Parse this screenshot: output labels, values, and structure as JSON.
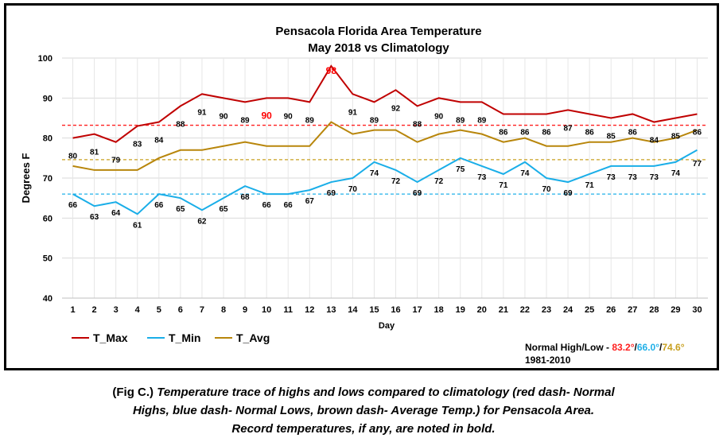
{
  "chart_data": {
    "type": "line",
    "title": "Pensacola Florida Area Temperature",
    "subtitle": "May 2018 vs Climatology",
    "xlabel": "Day",
    "ylabel": "Degrees F",
    "ylim": [
      40,
      100
    ],
    "yticks": [
      40,
      50,
      60,
      70,
      80,
      90,
      100
    ],
    "grid": "on",
    "legend_placement": "bottom-left",
    "x": [
      1,
      2,
      3,
      4,
      5,
      6,
      7,
      8,
      9,
      10,
      11,
      12,
      13,
      14,
      15,
      16,
      17,
      18,
      19,
      20,
      21,
      22,
      23,
      24,
      25,
      26,
      27,
      28,
      29,
      30
    ],
    "series": [
      {
        "name": "T_Max",
        "color": "#c00000",
        "values": [
          80,
          81,
          79,
          83,
          84,
          88,
          91,
          90,
          89,
          90,
          90,
          89,
          98,
          91,
          89,
          92,
          88,
          90,
          89,
          89,
          86,
          86,
          86,
          87,
          86,
          85,
          86,
          84,
          85,
          86
        ],
        "record_days": [
          10,
          13
        ]
      },
      {
        "name": "T_Min",
        "color": "#1aaee8",
        "values": [
          66,
          63,
          64,
          61,
          66,
          65,
          62,
          65,
          68,
          66,
          66,
          67,
          69,
          70,
          74,
          72,
          69,
          72,
          75,
          73,
          71,
          74,
          70,
          69,
          71,
          73,
          73,
          73,
          74,
          77
        ]
      },
      {
        "name": "T_Avg",
        "color": "#b8860b",
        "values": [
          73,
          72,
          72,
          72,
          75,
          77,
          77,
          78,
          79,
          78,
          78,
          78,
          84,
          81,
          82,
          82,
          79,
          81,
          82,
          81,
          79,
          80,
          78,
          78,
          79,
          79,
          80,
          79,
          80,
          82
        ]
      }
    ],
    "normals": [
      {
        "label": "Normal High",
        "value": 83.2,
        "color": "#ff2020"
      },
      {
        "label": "Normal Low",
        "value": 66.0,
        "color": "#20b0e8"
      },
      {
        "label": "Average Temp.",
        "value": 74.6,
        "color": "#c8a020"
      }
    ],
    "normals_text": {
      "prefix": "Normal High/Low - ",
      "high": "83.2°",
      "low": "66.0°",
      "avg": "74.6°",
      "sep": "/",
      "period": "1981-2010"
    }
  },
  "caption": {
    "lead": "(Fig C.) ",
    "line1": "Temperature trace of highs and lows compared to climatology (red dash- Normal",
    "line2": "Highs, blue dash- Normal Lows, brown dash- Average Temp.) for Pensacola Area.",
    "line3": "Record temperatures, if any, are noted in bold."
  }
}
